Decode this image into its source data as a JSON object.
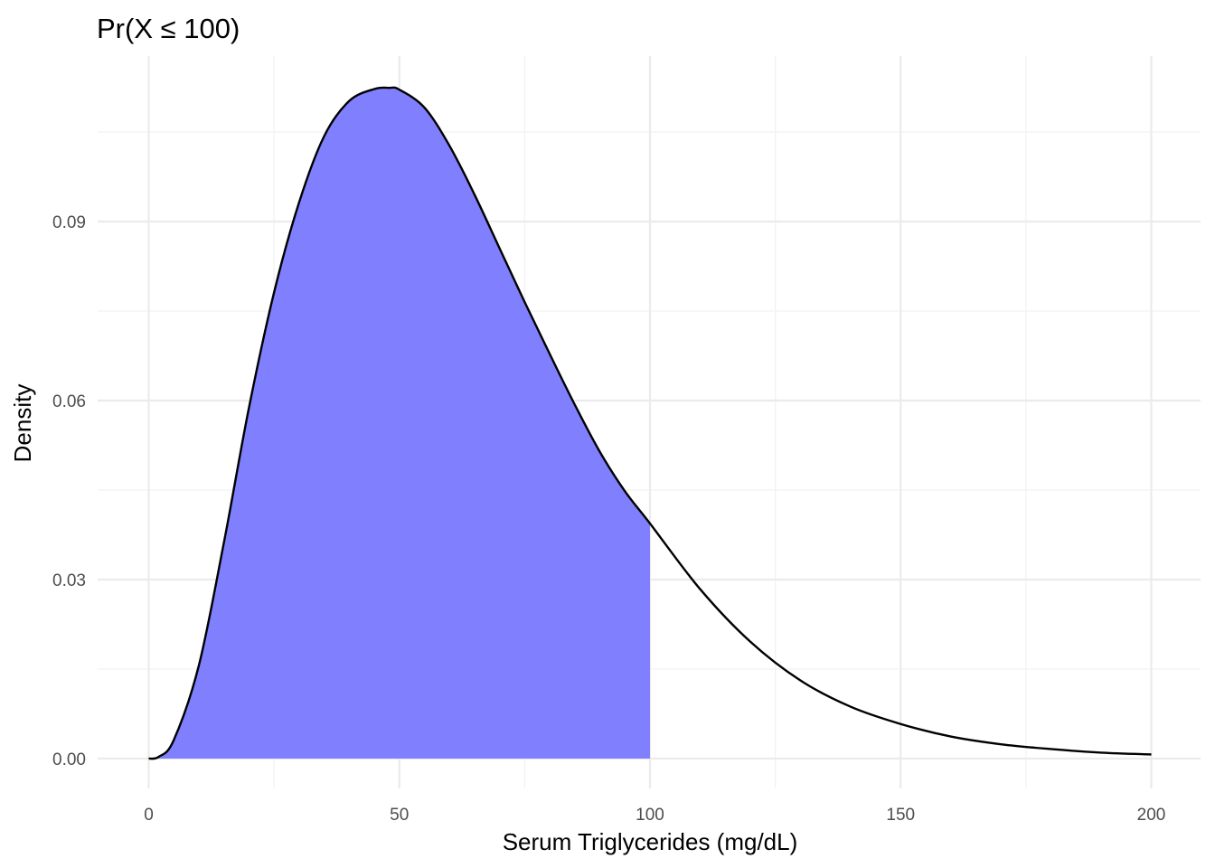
{
  "chart_data": {
    "type": "area",
    "title": "Pr(X ≤ 100)",
    "xlabel": "Serum Triglycerides (mg/dL)",
    "ylabel": "Density",
    "xlim": [
      0,
      200
    ],
    "ylim": [
      0,
      0.112
    ],
    "x_ticks": [
      0,
      50,
      100,
      150,
      200
    ],
    "x_tick_labels": [
      "0",
      "50",
      "100",
      "150",
      "200"
    ],
    "y_ticks": [
      0,
      0.03,
      0.06,
      0.09
    ],
    "y_tick_labels": [
      "0.00",
      "0.03",
      "0.06",
      "0.09"
    ],
    "grid": true,
    "shade_upper": 100,
    "colors": {
      "fill": "#8080ff",
      "line": "#000000"
    },
    "series": [
      {
        "x": [
          0,
          2,
          5,
          10,
          15,
          20,
          25,
          30,
          35,
          40,
          45,
          48,
          50,
          55,
          60,
          65,
          70,
          75,
          80,
          85,
          90,
          95,
          100,
          110,
          120,
          130,
          140,
          150,
          160,
          170,
          180,
          190,
          200
        ],
        "y": [
          0,
          0.0003,
          0.0031,
          0.0156,
          0.0362,
          0.0588,
          0.0781,
          0.0932,
          0.1043,
          0.1102,
          0.1122,
          0.1124,
          0.1121,
          0.1091,
          0.1027,
          0.0945,
          0.0855,
          0.0765,
          0.0678,
          0.0593,
          0.0514,
          0.0448,
          0.0394,
          0.0284,
          0.0196,
          0.0131,
          0.0087,
          0.0058,
          0.0037,
          0.0024,
          0.0016,
          0.001,
          0.0007
        ]
      }
    ]
  }
}
